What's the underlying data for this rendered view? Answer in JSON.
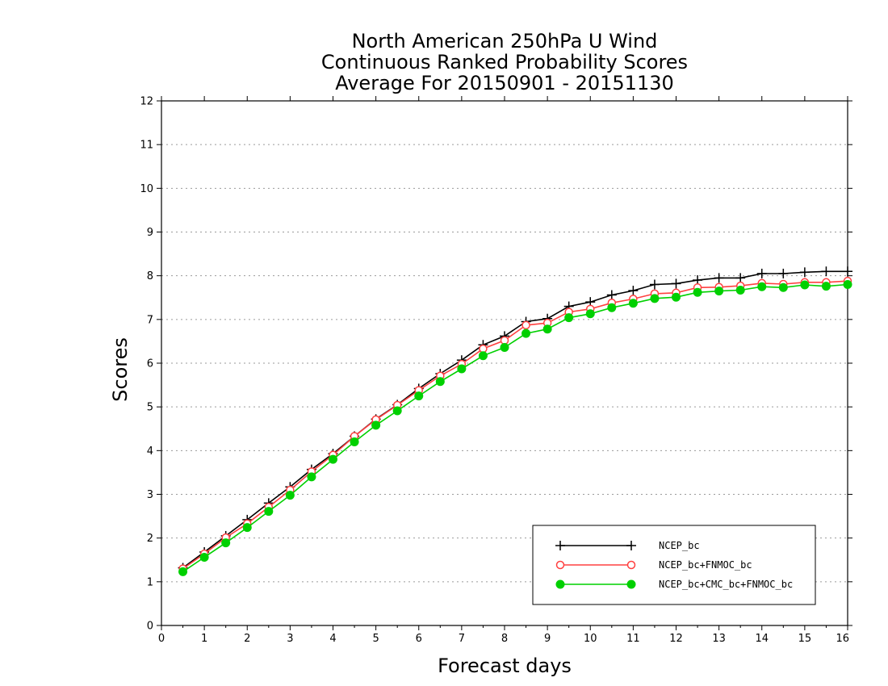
{
  "chart_data": {
    "type": "line",
    "title": [
      "North American 250hPa U Wind",
      "Continuous Ranked Probability Scores",
      "Average For 20150901 - 20151130"
    ],
    "xlabel": "Forecast days",
    "ylabel": "Scores",
    "xlim": [
      0,
      16
    ],
    "ylim": [
      0,
      12
    ],
    "xticks": [
      "0",
      "1",
      "2",
      "3",
      "4",
      "5",
      "6",
      "7",
      "8",
      "9",
      "10",
      "11",
      "12",
      "13",
      "14",
      "15",
      "16"
    ],
    "yticks": [
      "0",
      "1",
      "2",
      "3",
      "4",
      "5",
      "6",
      "7",
      "8",
      "9",
      "10",
      "11",
      "12"
    ],
    "grid": "horizontal-dotted",
    "legend_position": "bottom-right",
    "x": [
      0.5,
      1,
      1.5,
      2,
      2.5,
      3,
      3.5,
      4,
      4.5,
      5,
      5.5,
      6,
      6.5,
      7,
      7.5,
      8,
      8.5,
      9,
      9.5,
      10,
      10.5,
      11,
      11.5,
      12,
      12.5,
      13,
      13.5,
      14,
      14.5,
      15,
      15.5,
      16
    ],
    "series": [
      {
        "name": "NCEP_bc",
        "color": "#000000",
        "marker": "plus",
        "values": [
          1.32,
          1.68,
          2.05,
          2.42,
          2.8,
          3.17,
          3.57,
          3.93,
          4.33,
          4.72,
          5.05,
          5.42,
          5.76,
          6.07,
          6.42,
          6.62,
          6.95,
          7.02,
          7.3,
          7.4,
          7.56,
          7.66,
          7.8,
          7.82,
          7.9,
          7.95,
          7.95,
          8.05,
          8.05,
          8.08,
          8.1,
          8.1
        ]
      },
      {
        "name": "NCEP_bc+FNMOC_bc",
        "color": "#ff4040",
        "marker": "open-circle",
        "values": [
          1.3,
          1.64,
          2.01,
          2.33,
          2.71,
          3.1,
          3.52,
          3.9,
          4.33,
          4.71,
          5.04,
          5.38,
          5.71,
          5.98,
          6.33,
          6.52,
          6.87,
          6.92,
          7.17,
          7.24,
          7.38,
          7.47,
          7.59,
          7.61,
          7.73,
          7.74,
          7.77,
          7.83,
          7.81,
          7.85,
          7.85,
          7.88
        ]
      },
      {
        "name": "NCEP_bc+CMC_bc+FNMOC_bc",
        "color": "#00d000",
        "marker": "filled-circle",
        "values": [
          1.23,
          1.56,
          1.89,
          2.24,
          2.61,
          2.98,
          3.4,
          3.8,
          4.2,
          4.58,
          4.91,
          5.25,
          5.58,
          5.87,
          6.17,
          6.36,
          6.68,
          6.78,
          7.04,
          7.13,
          7.27,
          7.37,
          7.48,
          7.51,
          7.62,
          7.65,
          7.67,
          7.75,
          7.73,
          7.79,
          7.76,
          7.8
        ]
      }
    ]
  }
}
